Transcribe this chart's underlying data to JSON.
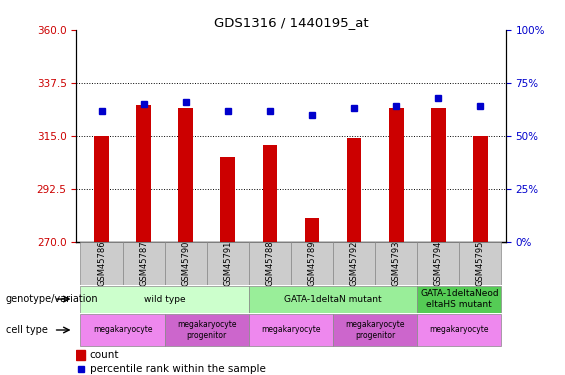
{
  "title": "GDS1316 / 1440195_at",
  "samples": [
    "GSM45786",
    "GSM45787",
    "GSM45790",
    "GSM45791",
    "GSM45788",
    "GSM45789",
    "GSM45792",
    "GSM45793",
    "GSM45794",
    "GSM45795"
  ],
  "counts": [
    315,
    328,
    327,
    306,
    311,
    280,
    314,
    327,
    327,
    315
  ],
  "percentiles": [
    62,
    65,
    66,
    62,
    62,
    60,
    63,
    64,
    68,
    64
  ],
  "ylim_left": [
    270,
    360
  ],
  "ylim_right": [
    0,
    100
  ],
  "yticks_left": [
    270,
    292.5,
    315,
    337.5,
    360
  ],
  "yticks_right": [
    0,
    25,
    50,
    75,
    100
  ],
  "bar_color": "#cc0000",
  "dot_color": "#0000cc",
  "left_tick_color": "#cc0000",
  "right_tick_color": "#0000cc",
  "xtick_box_color": "#cccccc",
  "genotype_groups": [
    {
      "label": "wild type",
      "start": 0,
      "end": 4,
      "color": "#ccffcc"
    },
    {
      "label": "GATA-1deltaN mutant",
      "start": 4,
      "end": 8,
      "color": "#99ee99"
    },
    {
      "label": "GATA-1deltaNeod\neltaHS mutant",
      "start": 8,
      "end": 10,
      "color": "#55cc55"
    }
  ],
  "cell_type_groups": [
    {
      "label": "megakaryocyte",
      "start": 0,
      "end": 2,
      "color": "#ee88ee"
    },
    {
      "label": "megakaryocyte\nprogenitor",
      "start": 2,
      "end": 4,
      "color": "#cc66cc"
    },
    {
      "label": "megakaryocyte",
      "start": 4,
      "end": 6,
      "color": "#ee88ee"
    },
    {
      "label": "megakaryocyte\nprogenitor",
      "start": 6,
      "end": 8,
      "color": "#cc66cc"
    },
    {
      "label": "megakaryocyte",
      "start": 8,
      "end": 10,
      "color": "#ee88ee"
    }
  ],
  "genotype_label": "genotype/variation",
  "cell_type_label": "cell type",
  "legend_count_label": "count",
  "legend_pct_label": "percentile rank within the sample"
}
